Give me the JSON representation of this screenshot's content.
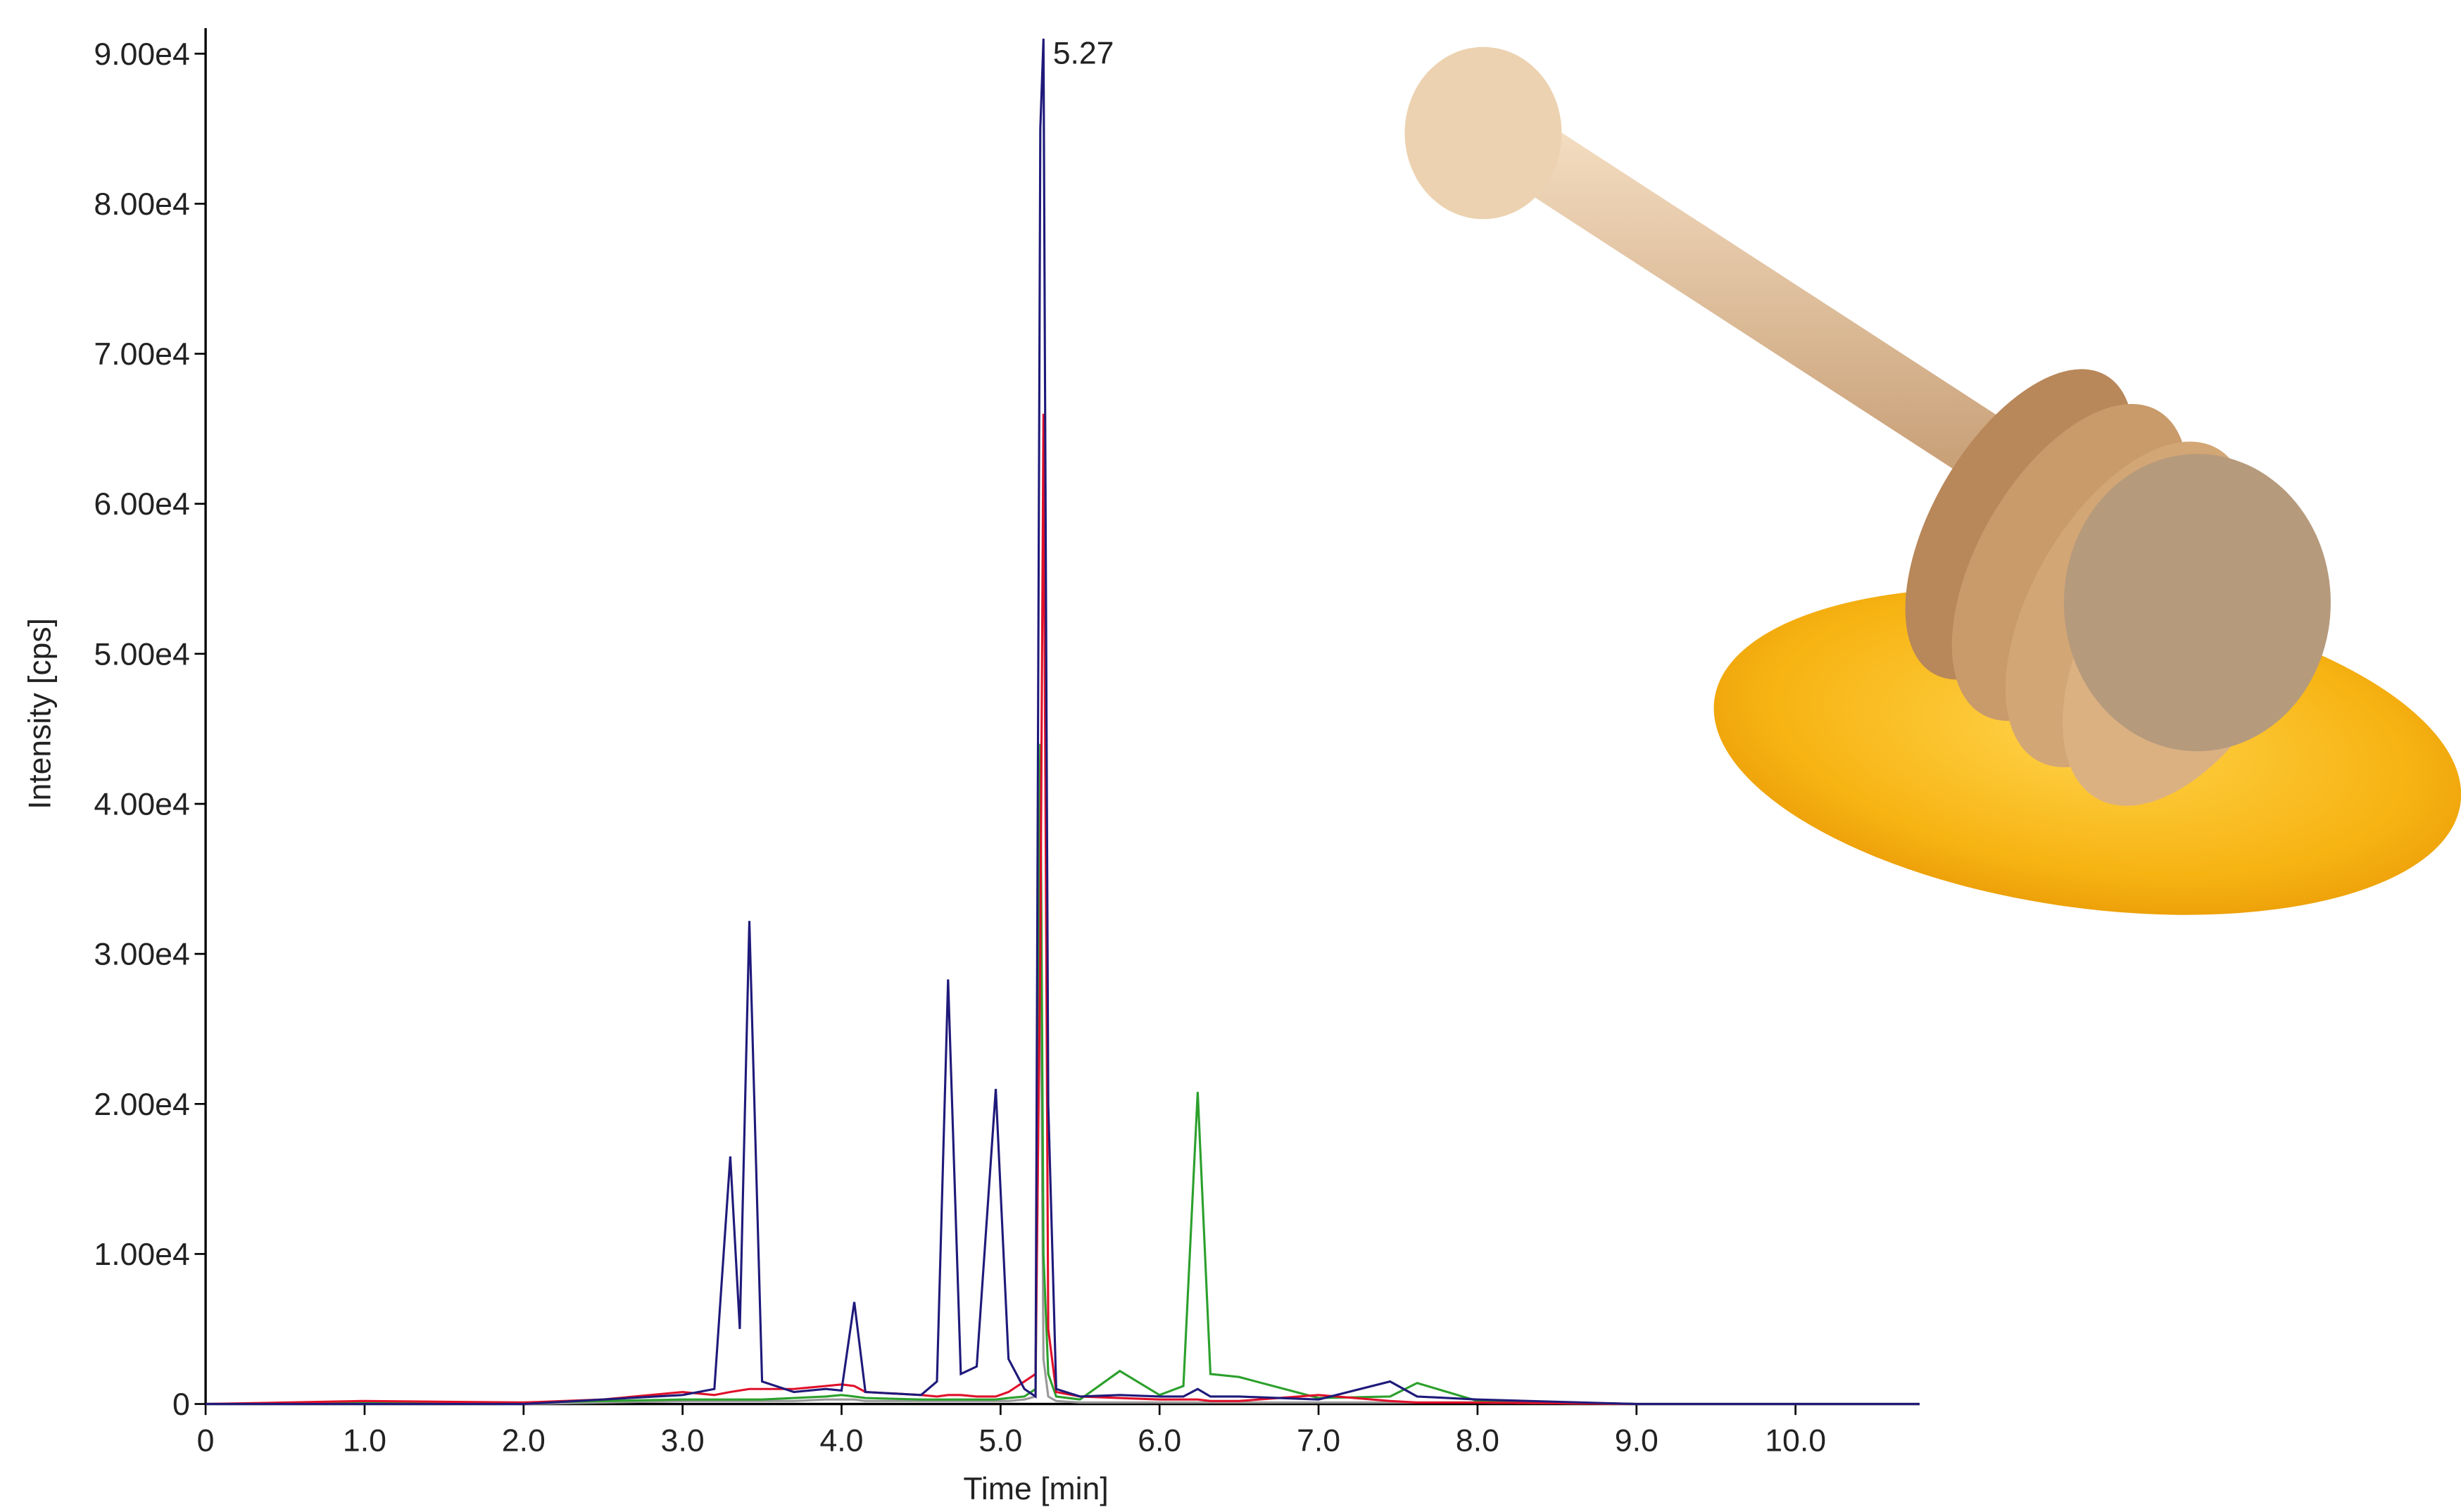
{
  "chart_data": {
    "type": "line",
    "x_label": "Time [min]",
    "y_label": "Intensity [cps]",
    "annotations": [
      {
        "text": "5.27"
      }
    ],
    "x": [
      0,
      1.0,
      2.0,
      2.5,
      3.0,
      3.2,
      3.3,
      3.36,
      3.42,
      3.5,
      3.7,
      3.9,
      4.0,
      4.08,
      4.15,
      4.5,
      4.6,
      4.67,
      4.75,
      4.85,
      4.97,
      5.05,
      5.15,
      5.22,
      5.25,
      5.27,
      5.3,
      5.35,
      5.5,
      5.75,
      6.0,
      6.15,
      6.24,
      6.32,
      6.5,
      7.0,
      7.45,
      7.62,
      8.0,
      9.0,
      10.78
    ],
    "series": [
      {
        "color": "#999999",
        "values": [
          0,
          0,
          0,
          100,
          200,
          200,
          200,
          200,
          200,
          200,
          200,
          300,
          300,
          300,
          200,
          200,
          200,
          200,
          200,
          200,
          200,
          200,
          300,
          500,
          32500,
          3000,
          500,
          200,
          100,
          100,
          100,
          100,
          100,
          100,
          100,
          100,
          100,
          100,
          100,
          0,
          0
        ]
      },
      {
        "color": "#2ca02c",
        "values": [
          0,
          100,
          100,
          200,
          300,
          300,
          300,
          300,
          300,
          300,
          400,
          500,
          600,
          500,
          400,
          300,
          300,
          300,
          300,
          300,
          300,
          400,
          500,
          1000,
          44000,
          10000,
          2000,
          500,
          300,
          2200,
          600,
          1200,
          20800,
          2000,
          1800,
          400,
          500,
          1400,
          200,
          0,
          0
        ]
      },
      {
        "color": "#e0102a",
        "values": [
          0,
          200,
          100,
          300,
          800,
          600,
          800,
          900,
          1000,
          1000,
          1000,
          1200,
          1300,
          1200,
          800,
          600,
          500,
          600,
          600,
          500,
          500,
          800,
          1500,
          2000,
          30000,
          66000,
          5000,
          800,
          500,
          400,
          300,
          300,
          300,
          200,
          200,
          600,
          200,
          100,
          100,
          0,
          0
        ]
      },
      {
        "color": "#1f1a7a",
        "values": [
          0,
          0,
          0,
          300,
          600,
          1000,
          16500,
          5000,
          32200,
          1500,
          800,
          1000,
          900,
          6800,
          800,
          600,
          1500,
          28300,
          2000,
          2500,
          21000,
          3000,
          1000,
          500,
          85000,
          91000,
          20000,
          1000,
          500,
          600,
          500,
          500,
          1000,
          500,
          500,
          300,
          1500,
          500,
          300,
          0,
          0
        ]
      }
    ],
    "xlim": [
      0,
      10.78
    ],
    "ylim": [
      0,
      91700
    ],
    "xticks": [
      0,
      {
        "value": 1,
        "label": "1.0"
      },
      {
        "value": 2,
        "label": "2.0"
      },
      {
        "value": 3,
        "label": "3.0"
      },
      {
        "value": 4,
        "label": "4.0"
      },
      {
        "value": 5,
        "label": "5.0"
      },
      {
        "value": 6,
        "label": "6.0"
      },
      {
        "value": 7,
        "label": "7.0"
      },
      {
        "value": 8,
        "label": "8.0"
      },
      {
        "value": 9,
        "label": "9.0"
      },
      {
        "value": 10,
        "label": "10.0"
      }
    ],
    "yticks": [
      0,
      {
        "value": 10000,
        "label": "1.00e4"
      },
      {
        "value": 20000,
        "label": "2.00e4"
      },
      {
        "value": 30000,
        "label": "3.00e4"
      },
      {
        "value": 40000,
        "label": "4.00e4"
      },
      {
        "value": 50000,
        "label": "5.00e4"
      },
      {
        "value": 60000,
        "label": "6.00e4"
      },
      {
        "value": 70000,
        "label": "7.00e4"
      },
      {
        "value": 80000,
        "label": "8.00e4"
      },
      {
        "value": 90000,
        "label": "9.00e4"
      }
    ],
    "grid": false
  }
}
